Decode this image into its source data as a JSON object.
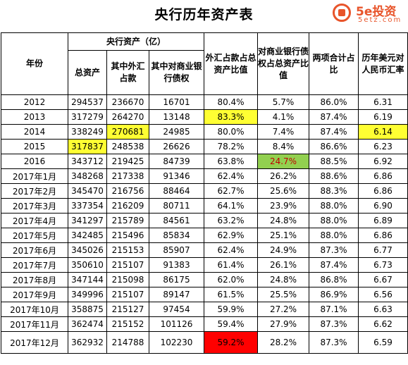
{
  "title": "央行历年资产表",
  "logo": {
    "brand": "5e投资",
    "url": "5etz.com"
  },
  "headers": {
    "year": "年份",
    "group": "央行资产（亿）",
    "total_assets": "总资产",
    "fx": "其中外汇占款",
    "bank_claims": "其中对商业银行债权",
    "fx_ratio": "外汇占款占总资产比值",
    "bank_ratio": "对商业银行债权占总资产比值",
    "combined_ratio": "两项合计占比",
    "usd_cny": "历年美元对人民币汇率"
  },
  "rows": [
    {
      "year": "2012",
      "total": "294537",
      "fx": "236670",
      "bank": "16701",
      "fx_ratio": "80.4%",
      "bank_ratio": "5.7%",
      "combined": "86.0%",
      "rate": "6.31"
    },
    {
      "year": "2013",
      "total": "317279",
      "fx": "264270",
      "bank": "13148",
      "fx_ratio": "83.3%",
      "bank_ratio": "4.1%",
      "combined": "87.4%",
      "rate": "6.19"
    },
    {
      "year": "2014",
      "total": "338249",
      "fx": "270681",
      "bank": "24985",
      "fx_ratio": "80.0%",
      "bank_ratio": "7.4%",
      "combined": "87.4%",
      "rate": "6.14"
    },
    {
      "year": "2015",
      "total": "317837",
      "fx": "248538",
      "bank": "26626",
      "fx_ratio": "78.2%",
      "bank_ratio": "8.4%",
      "combined": "86.6%",
      "rate": "6.23"
    },
    {
      "year": "2016",
      "total": "343712",
      "fx": "219425",
      "bank": "84739",
      "fx_ratio": "63.8%",
      "bank_ratio": "24.7%",
      "combined": "88.5%",
      "rate": "6.92"
    },
    {
      "year": "2017年1月",
      "total": "348268",
      "fx": "217338",
      "bank": "91346",
      "fx_ratio": "62.4%",
      "bank_ratio": "26.2%",
      "combined": "88.6%",
      "rate": "6.86"
    },
    {
      "year": "2017年2月",
      "total": "345470",
      "fx": "216756",
      "bank": "88464",
      "fx_ratio": "62.7%",
      "bank_ratio": "25.6%",
      "combined": "88.3%",
      "rate": "6.86"
    },
    {
      "year": "2017年3月",
      "total": "337354",
      "fx": "216209",
      "bank": "80711",
      "fx_ratio": "64.1%",
      "bank_ratio": "23.9%",
      "combined": "88.0%",
      "rate": "6.90"
    },
    {
      "year": "2017年4月",
      "total": "341297",
      "fx": "215789",
      "bank": "84561",
      "fx_ratio": "63.2%",
      "bank_ratio": "24.8%",
      "combined": "88.0%",
      "rate": "6.89"
    },
    {
      "year": "2017年5月",
      "total": "342485",
      "fx": "215496",
      "bank": "85834",
      "fx_ratio": "62.9%",
      "bank_ratio": "25.1%",
      "combined": "88.0%",
      "rate": "6.86"
    },
    {
      "year": "2017年6月",
      "total": "345026",
      "fx": "215153",
      "bank": "85907",
      "fx_ratio": "62.4%",
      "bank_ratio": "24.9%",
      "combined": "87.3%",
      "rate": "6.77"
    },
    {
      "year": "2017年7月",
      "total": "350610",
      "fx": "215107",
      "bank": "91383",
      "fx_ratio": "61.4%",
      "bank_ratio": "26.1%",
      "combined": "87.4%",
      "rate": "6.73"
    },
    {
      "year": "2017年8月",
      "total": "347144",
      "fx": "215098",
      "bank": "86175",
      "fx_ratio": "62.0%",
      "bank_ratio": "24.8%",
      "combined": "86.8%",
      "rate": "6.67"
    },
    {
      "year": "2017年9月",
      "total": "349996",
      "fx": "215107",
      "bank": "89147",
      "fx_ratio": "61.5%",
      "bank_ratio": "25.5%",
      "combined": "86.9%",
      "rate": "6.56"
    },
    {
      "year": "2017年10月",
      "total": "358875",
      "fx": "215127",
      "bank": "97454",
      "fx_ratio": "59.9%",
      "bank_ratio": "27.2%",
      "combined": "87.1%",
      "rate": "6.63"
    },
    {
      "year": "2017年11月",
      "total": "362474",
      "fx": "215152",
      "bank": "101126",
      "fx_ratio": "59.4%",
      "bank_ratio": "27.9%",
      "combined": "87.3%",
      "rate": "6.62"
    },
    {
      "year": "2017年12月",
      "total": "362932",
      "fx": "214788",
      "bank": "102230",
      "fx_ratio": "59.2%",
      "bank_ratio": "28.2%",
      "combined": "87.3%",
      "rate": "6.59"
    }
  ],
  "highlight_colors": {
    "yellow": "#ffff33",
    "green": "#92d050",
    "red": "#ff0000",
    "dark_red_text": "#c00000"
  }
}
